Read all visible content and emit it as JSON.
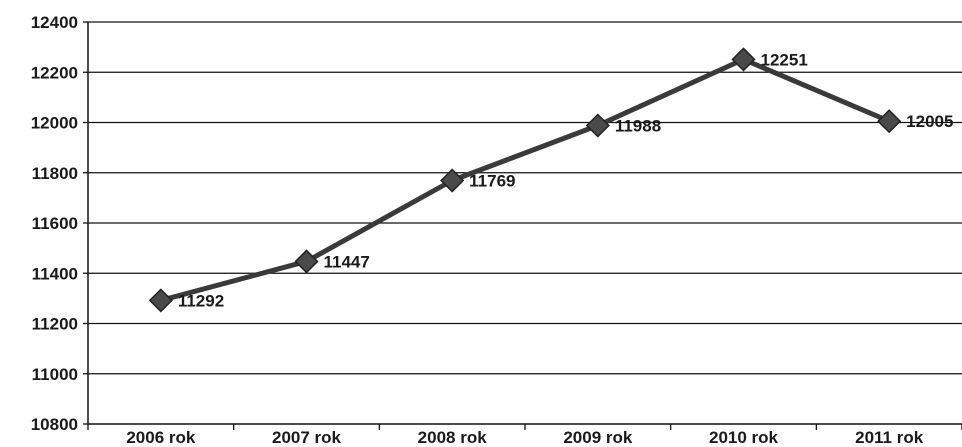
{
  "chart_data": {
    "type": "line",
    "categories": [
      "2006 rok",
      "2007 rok",
      "2008 rok",
      "2009 rok",
      "2010 rok",
      "2011 rok"
    ],
    "series": [
      {
        "values": [
          11292,
          11447,
          11769,
          11988,
          12251,
          12005
        ],
        "data_labels": [
          "11292",
          "11447",
          "11769",
          "11988",
          "12251",
          "12005"
        ]
      }
    ],
    "ylim": [
      10800,
      12400
    ],
    "yticks": [
      10800,
      11000,
      11200,
      11400,
      11600,
      11800,
      12000,
      12200,
      12400
    ],
    "ytick_labels": [
      "10800",
      "11000",
      "11200",
      "11400",
      "11600",
      "11800",
      "12000",
      "12200",
      "12400"
    ],
    "grid": true,
    "legend": "none",
    "colors": {
      "line": "#3a3a3a",
      "marker": "#4a4a4a",
      "grid": "#111111",
      "text": "#1a1a1a"
    }
  }
}
